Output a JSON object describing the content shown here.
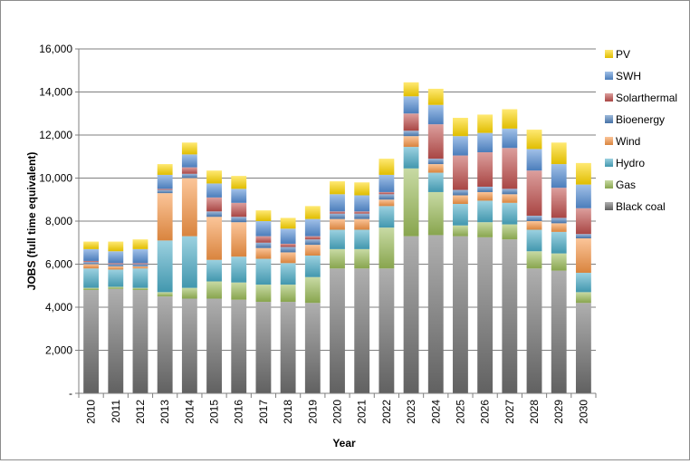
{
  "chart_data": {
    "type": "bar",
    "stacked": true,
    "title": "",
    "xlabel": "Year",
    "ylabel": "JOBS (full time equivalent)",
    "ylim": [
      0,
      16000
    ],
    "yticks": [
      0,
      2000,
      4000,
      6000,
      8000,
      10000,
      12000,
      14000,
      16000
    ],
    "ytick_labels": [
      "-",
      "2,000",
      "4,000",
      "6,000",
      "8,000",
      "10,000",
      "12,000",
      "14,000",
      "16,000"
    ],
    "grid": true,
    "legend_position": "right",
    "categories": [
      "2010",
      "2011",
      "2012",
      "2013",
      "2014",
      "2015",
      "2016",
      "2017",
      "2018",
      "2019",
      "2020",
      "2021",
      "2022",
      "2023",
      "2024",
      "2025",
      "2026",
      "2027",
      "2028",
      "2029",
      "2030"
    ],
    "series": [
      {
        "name": "Black coal",
        "color": "#6e6e6e",
        "values": [
          4800,
          4850,
          4800,
          4500,
          4400,
          4400,
          4350,
          4250,
          4250,
          4200,
          5800,
          5800,
          5800,
          7300,
          7350,
          7300,
          7250,
          7150,
          5800,
          5700,
          4200
        ]
      },
      {
        "name": "Gas",
        "color": "#9bbb59",
        "values": [
          100,
          100,
          100,
          200,
          500,
          800,
          800,
          800,
          800,
          1200,
          900,
          900,
          1900,
          3150,
          2000,
          500,
          700,
          700,
          800,
          800,
          500
        ]
      },
      {
        "name": "Hydro",
        "color": "#4bacc6",
        "values": [
          900,
          800,
          900,
          2400,
          2400,
          1000,
          1200,
          1200,
          1000,
          1000,
          900,
          900,
          1000,
          1000,
          900,
          1000,
          1000,
          1000,
          1000,
          1000,
          900
        ]
      },
      {
        "name": "Wind",
        "color": "#f79646",
        "values": [
          200,
          150,
          100,
          2200,
          2700,
          2000,
          1600,
          500,
          500,
          500,
          500,
          500,
          300,
          500,
          400,
          400,
          400,
          400,
          400,
          400,
          1600
        ]
      },
      {
        "name": "Bioenergy",
        "color": "#4f81bd",
        "values": [
          100,
          100,
          100,
          150,
          200,
          250,
          250,
          250,
          250,
          250,
          250,
          250,
          250,
          250,
          250,
          250,
          250,
          250,
          250,
          250,
          200
        ]
      },
      {
        "name": "Solarthermal",
        "color": "#c0504d",
        "values": [
          50,
          50,
          50,
          50,
          300,
          650,
          650,
          300,
          150,
          150,
          100,
          100,
          100,
          800,
          1600,
          1600,
          1600,
          1900,
          2100,
          1400,
          1200
        ]
      },
      {
        "name": "SWH",
        "color": "#558ed5",
        "values": [
          550,
          550,
          650,
          650,
          600,
          650,
          650,
          700,
          700,
          800,
          800,
          750,
          800,
          800,
          900,
          900,
          900,
          900,
          1000,
          1100,
          1100
        ]
      },
      {
        "name": "PV",
        "color": "#ffd700",
        "values": [
          350,
          450,
          450,
          500,
          550,
          600,
          600,
          500,
          500,
          600,
          600,
          600,
          750,
          650,
          750,
          850,
          850,
          900,
          900,
          1000,
          1000
        ]
      }
    ]
  }
}
